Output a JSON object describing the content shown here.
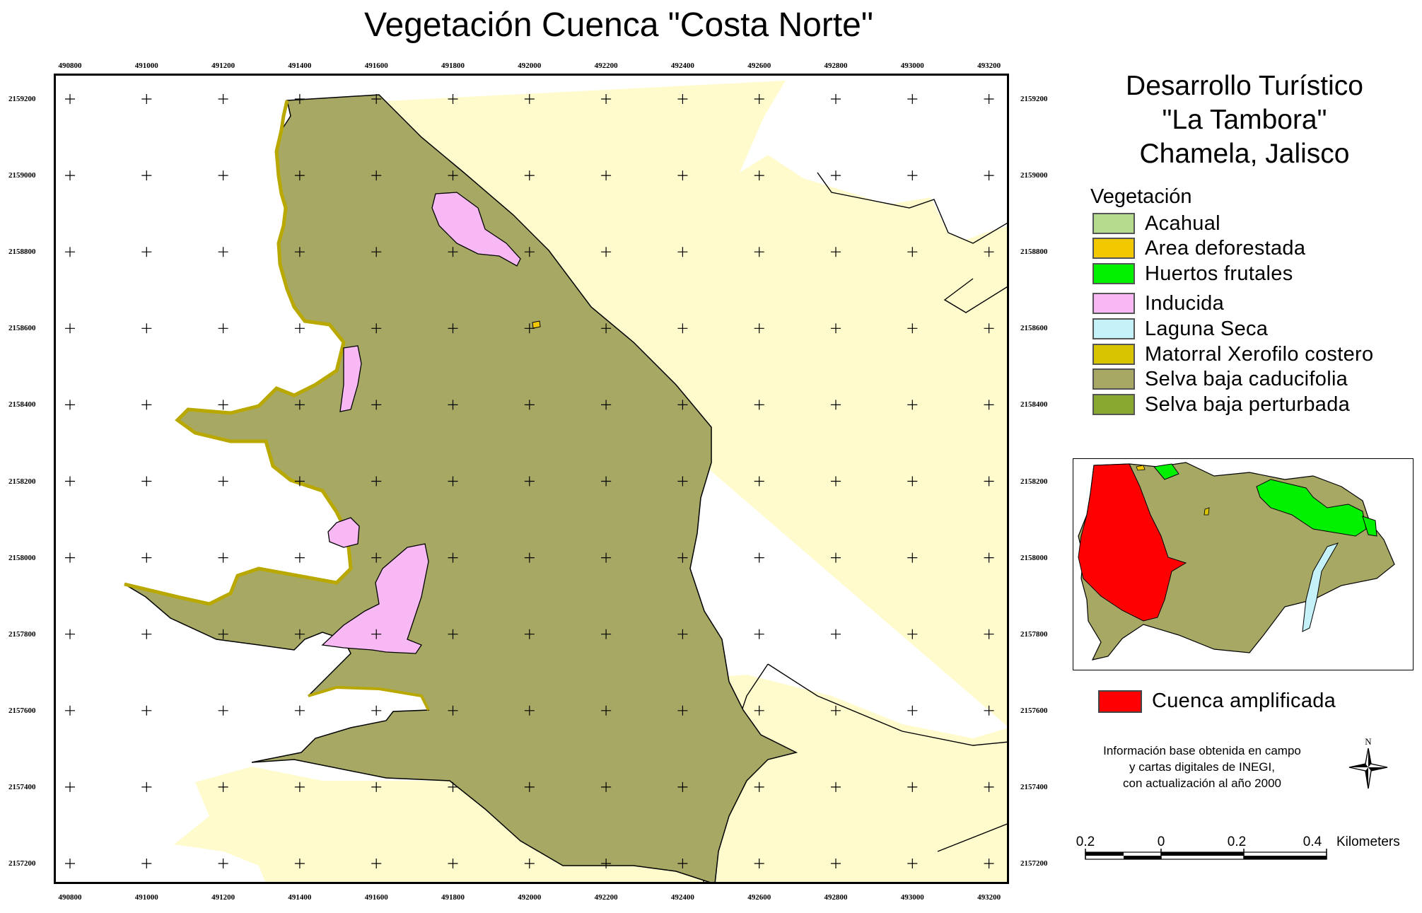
{
  "map": {
    "title": "Vegetación Cuenca \"Costa Norte\"",
    "x_ticks": [
      "490800",
      "491000",
      "491200",
      "491400",
      "491600",
      "491800",
      "492000",
      "492200",
      "492400",
      "492600",
      "492800",
      "493000",
      "493200"
    ],
    "y_ticks": [
      "2159200",
      "2159000",
      "2158800",
      "2158600",
      "2158400",
      "2158200",
      "2158000",
      "2157800",
      "2157600",
      "2157400",
      "2157200"
    ]
  },
  "project": {
    "line1": "Desarrollo Turístico",
    "line2": "\"La Tambora\"",
    "line3": "Chamela, Jalisco"
  },
  "legend": {
    "heading": "Vegetación",
    "items": [
      {
        "label": "Acahual",
        "color": "#b5dc8e"
      },
      {
        "label": "Area deforestada",
        "color": "#f2c800"
      },
      {
        "label": "Huertos frutales",
        "color": "#00f000"
      },
      {
        "label": "Inducida",
        "color": "#f8b8f4"
      },
      {
        "label": "Laguna Seca",
        "color": "#c4f2f8"
      },
      {
        "label": "Matorral Xerofilo costero",
        "color": "#d8c400"
      },
      {
        "label": "Selva baja caducifolia",
        "color": "#a6a864"
      },
      {
        "label": "Selva baja perturbada",
        "color": "#88a830"
      }
    ]
  },
  "inset": {
    "highlight_label": "Cuenca amplificada",
    "highlight_color": "#ff0000"
  },
  "source": {
    "line1": "Información base obtenida en campo",
    "line2": "y cartas digitales de INEGI,",
    "line3": "con actualización al año 2000"
  },
  "north": {
    "label": "N"
  },
  "scale": {
    "labels": [
      "0.2",
      "0",
      "0.2",
      "0.4"
    ],
    "units": "Kilometers"
  },
  "colors": {
    "background_land": "#fffbcc",
    "selva_baja_caducifolia": "#a6a864",
    "matorral": "#d8c400",
    "inducida": "#f8b8f4",
    "frame": "#000000"
  }
}
